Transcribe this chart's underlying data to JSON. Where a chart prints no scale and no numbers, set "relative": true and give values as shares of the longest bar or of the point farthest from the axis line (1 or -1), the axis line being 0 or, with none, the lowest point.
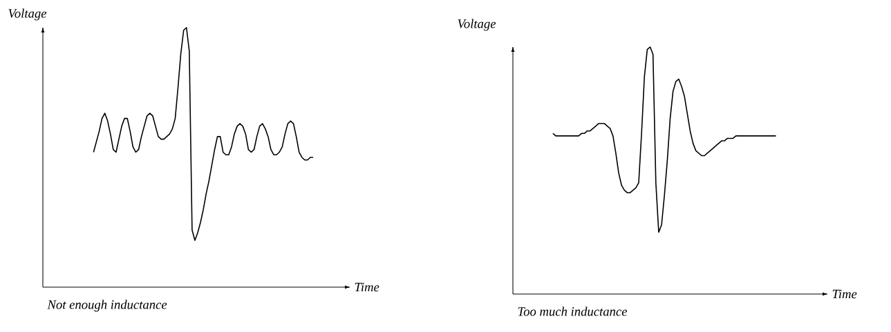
{
  "chart_data": [
    {
      "type": "line",
      "relative": true,
      "xlabel": "Time",
      "ylabel": "Voltage",
      "color": "#000000",
      "line_style": "solid",
      "annotations": [
        "Not enough inductance"
      ],
      "categories": [
        null,
        null,
        null,
        null,
        null,
        null,
        null,
        null,
        null,
        null,
        null,
        null,
        null,
        null,
        null,
        null,
        null,
        null,
        null,
        null,
        null,
        null,
        null,
        null,
        null,
        null,
        null,
        null,
        null,
        null,
        null,
        null,
        null,
        null,
        null,
        null,
        null,
        null,
        null,
        null,
        null,
        null,
        null,
        null,
        null,
        null,
        null,
        null,
        null,
        null,
        null,
        null,
        null,
        null,
        null,
        null,
        null,
        null,
        null,
        null,
        null,
        null,
        null,
        null,
        null,
        null,
        null,
        null,
        null,
        null,
        null,
        null,
        null,
        null,
        null,
        null,
        null,
        null,
        null,
        null,
        null,
        null,
        null,
        null,
        null,
        null,
        null,
        null,
        null,
        null,
        null,
        null,
        null,
        null,
        null,
        null,
        null,
        null,
        null,
        null,
        null,
        null,
        null,
        null,
        null,
        null,
        null,
        null,
        null,
        null
      ],
      "values": [
        null,
        null,
        null,
        null,
        null,
        null,
        null,
        null,
        null,
        null,
        null,
        null,
        null,
        null,
        null,
        null,
        null,
        null,
        0.52,
        0.56,
        0.6,
        0.65,
        0.67,
        0.64,
        0.59,
        0.53,
        0.52,
        0.57,
        0.62,
        0.65,
        0.65,
        0.6,
        0.54,
        0.52,
        0.53,
        0.58,
        0.62,
        0.66,
        0.67,
        0.66,
        0.62,
        0.58,
        0.57,
        0.57,
        0.58,
        0.59,
        0.61,
        0.65,
        0.77,
        0.9,
        0.99,
        1.0,
        0.91,
        0.22,
        0.18,
        0.21,
        0.25,
        0.3,
        0.36,
        0.41,
        0.47,
        0.53,
        0.58,
        0.58,
        0.52,
        0.51,
        0.51,
        0.54,
        0.59,
        0.62,
        0.63,
        0.62,
        0.59,
        0.53,
        0.52,
        0.53,
        0.58,
        0.62,
        0.63,
        0.61,
        0.58,
        0.53,
        0.51,
        0.51,
        0.52,
        0.54,
        0.59,
        0.63,
        0.64,
        0.63,
        0.58,
        0.52,
        0.5,
        0.49,
        0.49,
        0.5,
        0.5,
        null,
        null,
        null,
        null,
        null,
        null,
        null,
        null,
        null,
        null,
        null,
        null,
        null
      ]
    },
    {
      "type": "line",
      "relative": true,
      "xlabel": "Time",
      "ylabel": "Voltage",
      "color": "#000000",
      "line_style": "solid",
      "annotations": [
        "Too much inductance"
      ],
      "categories": [
        null,
        null,
        null,
        null,
        null,
        null,
        null,
        null,
        null,
        null,
        null,
        null,
        null,
        null,
        null,
        null,
        null,
        null,
        null,
        null,
        null,
        null,
        null,
        null,
        null,
        null,
        null,
        null,
        null,
        null,
        null,
        null,
        null,
        null,
        null,
        null,
        null,
        null,
        null,
        null,
        null,
        null,
        null,
        null,
        null,
        null,
        null,
        null,
        null,
        null,
        null,
        null,
        null,
        null,
        null,
        null,
        null,
        null,
        null,
        null,
        null,
        null,
        null,
        null,
        null,
        null,
        null,
        null,
        null,
        null,
        null,
        null,
        null,
        null,
        null,
        null,
        null,
        null,
        null,
        null,
        null,
        null,
        null,
        null,
        null,
        null,
        null,
        null,
        null,
        null,
        null,
        null,
        null,
        null,
        null,
        null,
        null,
        null,
        null,
        null,
        null,
        null,
        null,
        null,
        null,
        null,
        null,
        null,
        null,
        null,
        null
      ],
      "values": [
        null,
        null,
        null,
        null,
        null,
        null,
        null,
        null,
        null,
        null,
        null,
        null,
        null,
        null,
        0.65,
        0.64,
        0.64,
        0.64,
        0.64,
        0.64,
        0.64,
        0.64,
        0.64,
        0.64,
        0.65,
        0.65,
        0.66,
        0.66,
        0.67,
        0.68,
        0.69,
        0.69,
        0.69,
        0.68,
        0.67,
        0.64,
        0.57,
        0.49,
        0.44,
        0.42,
        0.41,
        0.41,
        0.42,
        0.43,
        0.45,
        0.65,
        0.88,
        0.99,
        1.0,
        0.97,
        0.45,
        0.25,
        0.28,
        0.4,
        0.54,
        0.71,
        0.82,
        0.86,
        0.87,
        0.84,
        0.8,
        0.73,
        0.66,
        0.61,
        0.58,
        0.57,
        0.56,
        0.56,
        0.57,
        0.58,
        0.59,
        0.6,
        0.61,
        0.62,
        0.62,
        0.63,
        0.63,
        0.63,
        0.64,
        0.64,
        0.64,
        0.64,
        0.64,
        0.64,
        0.64,
        0.64,
        0.64,
        0.64,
        0.64,
        0.64,
        0.64,
        0.64,
        0.64,
        null,
        null,
        null,
        null,
        null,
        null,
        null,
        null,
        null,
        null,
        null,
        null,
        null,
        null,
        null,
        null,
        null,
        null
      ]
    }
  ]
}
